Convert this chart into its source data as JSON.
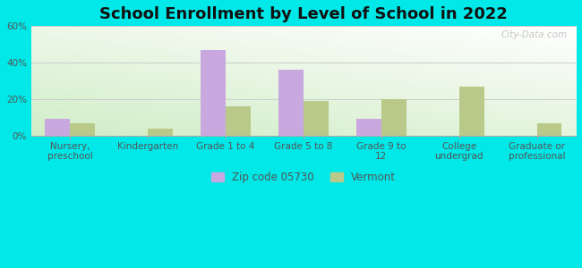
{
  "title": "School Enrollment by Level of School in 2022",
  "categories": [
    "Nursery,\npreschool",
    "Kindergarten",
    "Grade 1 to 4",
    "Grade 5 to 8",
    "Grade 9 to\n12",
    "College\nundergrad",
    "Graduate or\nprofessional"
  ],
  "zip_values": [
    9,
    0,
    47,
    36,
    9,
    0,
    0
  ],
  "vermont_values": [
    7,
    4,
    16,
    19,
    20,
    27,
    7
  ],
  "zip_color": "#c9a8e0",
  "vermont_color": "#b8c98a",
  "background_color": "#00e8e8",
  "plot_bg_color": "#d8eec8",
  "ylim": [
    0,
    60
  ],
  "yticks": [
    0,
    20,
    40,
    60
  ],
  "ytick_labels": [
    "0%",
    "20%",
    "40%",
    "60%"
  ],
  "legend_zip_label": "Zip code 05730",
  "legend_vermont_label": "Vermont",
  "title_fontsize": 13,
  "tick_fontsize": 7.5,
  "legend_fontsize": 8.5,
  "bar_width": 0.32,
  "watermark": "City-Data.com"
}
